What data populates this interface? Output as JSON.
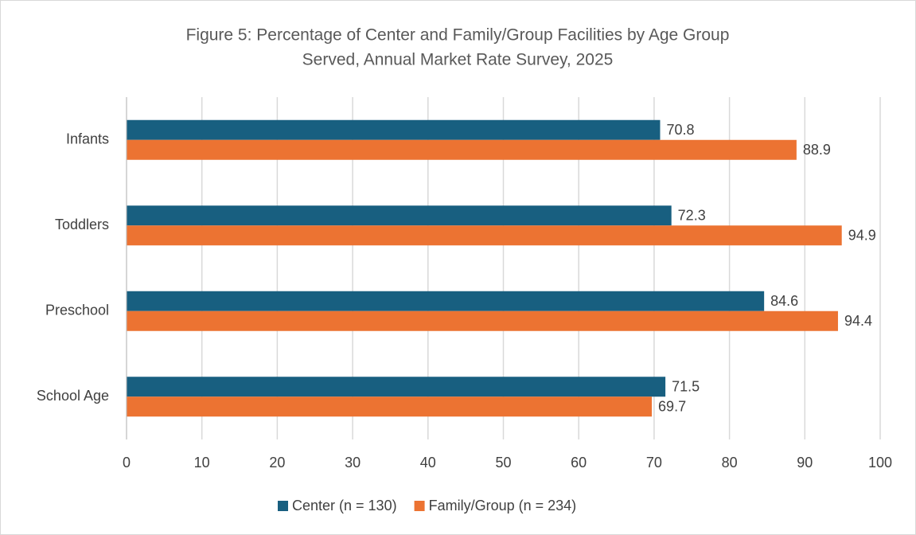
{
  "chart_data": {
    "type": "hbar",
    "title": [
      "Figure 5: Percentage of Center and Family/Group Facilities by Age Group",
      "Served, Annual Market Rate Survey, 2025"
    ],
    "categories": [
      "Infants",
      "Toddlers",
      "Preschool",
      "School Age"
    ],
    "series": [
      {
        "name": "Center (n = 130)",
        "color": "#185f80",
        "values": [
          70.8,
          72.3,
          84.6,
          71.5
        ]
      },
      {
        "name": "Family/Group (n = 234)",
        "color": "#ec7332",
        "values": [
          88.9,
          94.9,
          94.4,
          69.7
        ]
      }
    ],
    "xlim": [
      0,
      100
    ],
    "xticks": [
      0,
      10,
      20,
      30,
      40,
      50,
      60,
      70,
      80,
      90,
      100
    ],
    "grid": true,
    "legend": "bottom"
  }
}
